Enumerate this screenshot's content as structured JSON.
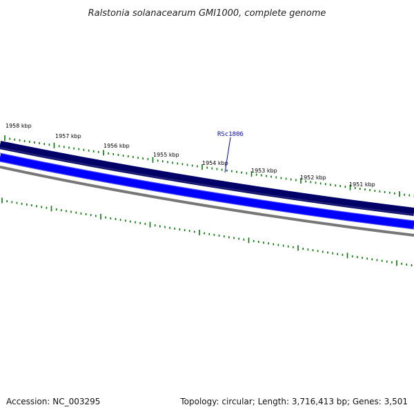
{
  "title": "Ralstonia solanacearum GMI1000, complete genome",
  "scale_labels": [
    "1958 kbp",
    "1957 kbp",
    "1956 kbp",
    "1955 kbp",
    "1954 kbp",
    "1953 kbp",
    "1952 kbp",
    "1951 kbp"
  ],
  "gene_label": "RSc1806",
  "footer": {
    "accession": "Accession: NC_003295",
    "summary": "Topology: circular; Length: 3,716,413 bp; Genes: 3,501"
  },
  "colors": {
    "forward_strand": "#000066",
    "reverse_strand": "#0000ff",
    "backbone": "#777777",
    "ticks": "#007700",
    "gene_label": "#0000cc"
  }
}
